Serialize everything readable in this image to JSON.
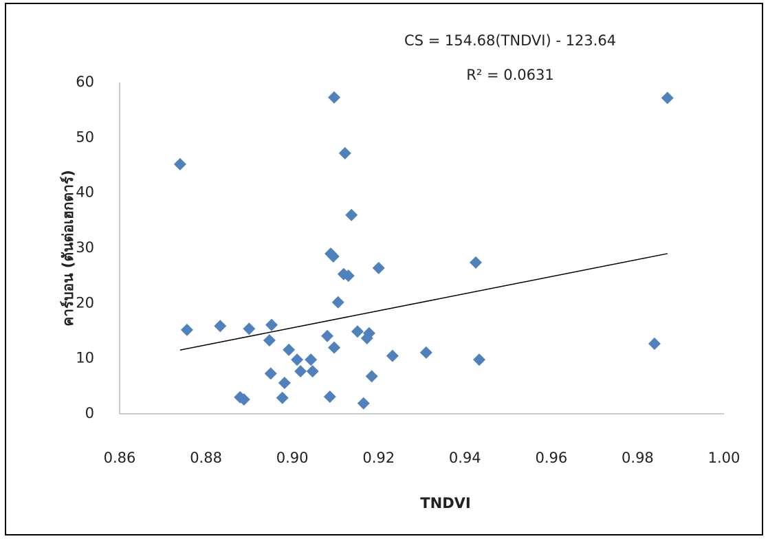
{
  "chart_data": {
    "type": "scatter",
    "x_label": "TNDVI",
    "y_label": "คาร์บอน (ตันต่อเฮกตาร์)",
    "annotations": [
      "CS = 154.68(TNDVI) - 123.64",
      "R² = 0.0631"
    ],
    "trendline": {
      "slope": 154.68,
      "intercept": -123.64
    },
    "color": "#4f81bd",
    "x": [
      0.874,
      0.8756,
      0.8833,
      0.89,
      0.8952,
      0.8947,
      0.8879,
      0.8888,
      0.895,
      0.8992,
      0.8982,
      0.8977,
      0.9011,
      0.9019,
      0.9047,
      0.9043,
      0.9081,
      0.9087,
      0.9089,
      0.9095,
      0.9097,
      0.9097,
      0.9106,
      0.9119,
      0.913,
      0.9122,
      0.9137,
      0.9151,
      0.9165,
      0.9173,
      0.9178,
      0.9184,
      0.92,
      0.9232,
      0.931,
      0.9425,
      0.9433,
      0.9839,
      0.9869
    ],
    "values": [
      45.2,
      15.2,
      15.9,
      15.4,
      16.1,
      13.3,
      3.0,
      2.6,
      7.3,
      11.6,
      5.6,
      2.9,
      9.8,
      7.7,
      7.7,
      9.8,
      14.1,
      3.1,
      29.0,
      28.5,
      57.3,
      12.0,
      20.2,
      25.3,
      25.0,
      47.2,
      36.0,
      14.9,
      1.9,
      13.7,
      14.6,
      6.8,
      26.4,
      10.5,
      11.1,
      27.4,
      9.8,
      12.7,
      57.2
    ],
    "xlim": [
      0.86,
      1.0
    ],
    "ylim": [
      0,
      60
    ],
    "xticks": [
      0.86,
      0.88,
      {
        "value": 0.9,
        "label": "0.90"
      },
      0.92,
      0.94,
      0.96,
      0.98,
      {
        "value": 1.0,
        "label": "1.00"
      }
    ],
    "yticks": [
      0,
      10,
      20,
      30,
      40,
      50,
      60
    ],
    "grid": false
  }
}
